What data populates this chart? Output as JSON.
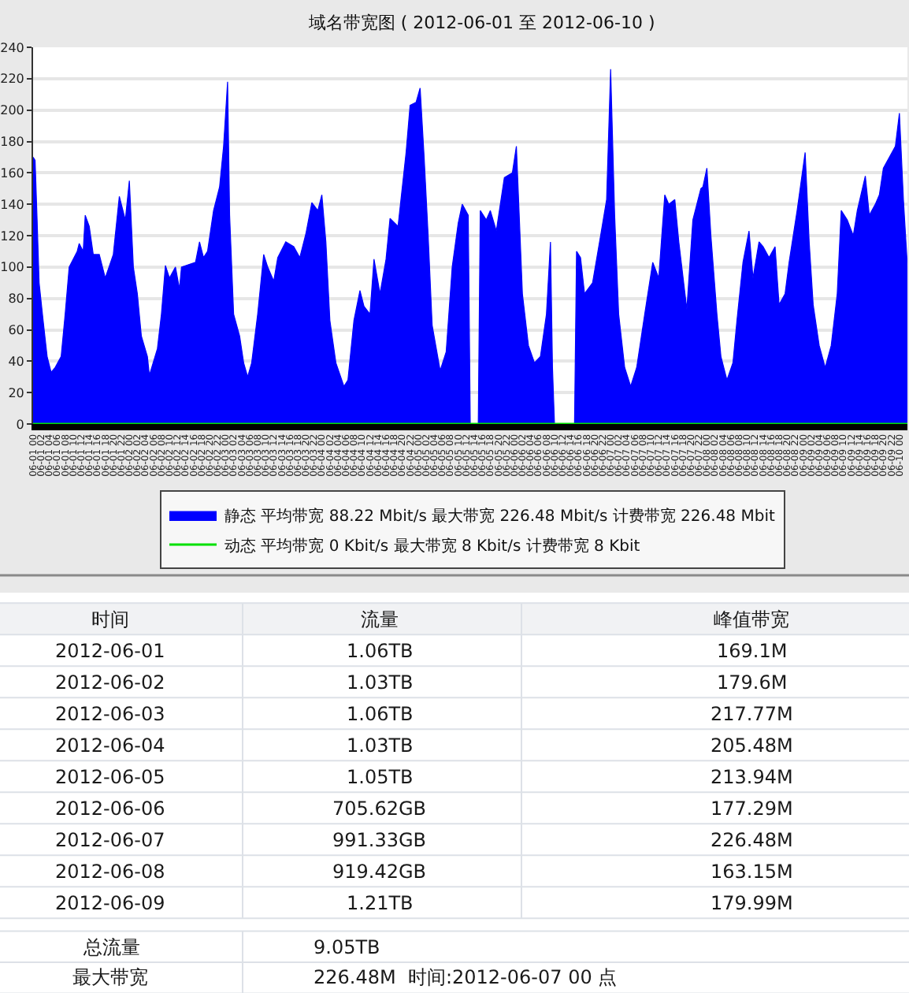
{
  "chart_data": {
    "type": "area",
    "title": "域名带宽图 ( 2012-06-01 至 2012-06-10 )",
    "x": [
      "2012-06-01T00:00",
      "2012-06-01T00:30",
      "2012-06-01T01:00",
      "2012-06-01T01:30",
      "2012-06-01T02:30",
      "2012-06-01T03:30",
      "2012-06-01T04:30",
      "2012-06-01T05:30",
      "2012-06-01T07:00",
      "2012-06-01T08:00",
      "2012-06-01T09:00",
      "2012-06-01T11:00",
      "2012-06-01T11:30",
      "2012-06-01T12:30",
      "2012-06-01T13:00",
      "2012-06-01T14:00",
      "2012-06-01T15:00",
      "2012-06-01T16:30",
      "2012-06-01T18:00",
      "2012-06-01T20:00",
      "2012-06-01T21:30",
      "2012-06-01T23:00",
      "2012-06-02T00:00",
      "2012-06-02T01:00",
      "2012-06-02T02:00",
      "2012-06-02T03:00",
      "2012-06-02T04:30",
      "2012-06-02T05:00",
      "2012-06-02T07:00",
      "2012-06-02T08:00",
      "2012-06-02T09:00",
      "2012-06-02T10:00",
      "2012-06-02T11:30",
      "2012-06-02T12:30",
      "2012-06-02T13:00",
      "2012-06-02T16:30",
      "2012-06-02T17:30",
      "2012-06-02T18:30",
      "2012-06-02T19:30",
      "2012-06-02T21:00",
      "2012-06-02T22:30",
      "2012-06-02T23:30",
      "2012-06-03T00:30",
      "2012-06-03T01:00",
      "2012-06-03T02:00",
      "2012-06-03T03:30",
      "2012-06-03T04:30",
      "2012-06-03T05:30",
      "2012-06-03T06:30",
      "2012-06-03T08:00",
      "2012-06-03T09:30",
      "2012-06-03T10:30",
      "2012-06-03T12:00",
      "2012-06-03T13:00",
      "2012-06-03T15:00",
      "2012-06-03T17:00",
      "2012-06-03T18:30",
      "2012-06-03T20:00",
      "2012-06-03T21:30",
      "2012-06-03T23:00",
      "2012-06-04T00:00",
      "2012-06-04T01:00",
      "2012-06-04T02:00",
      "2012-06-04T03:30",
      "2012-06-04T05:30",
      "2012-06-04T06:30",
      "2012-06-04T08:00",
      "2012-06-04T09:30",
      "2012-06-04T10:30",
      "2012-06-04T12:00",
      "2012-06-04T13:00",
      "2012-06-04T14:30",
      "2012-06-04T16:00",
      "2012-06-04T17:00",
      "2012-06-04T19:00",
      "2012-06-04T21:00",
      "2012-06-04T22:00",
      "2012-06-04T23:30",
      "2012-06-05T00:30",
      "2012-06-05T01:30",
      "2012-06-05T02:30",
      "2012-06-05T03:30",
      "2012-06-05T05:30",
      "2012-06-05T07:00",
      "2012-06-05T08:30",
      "2012-06-05T10:00",
      "2012-06-05T11:00",
      "2012-06-05T12:30",
      "2012-06-05T13:00",
      "2012-06-05T15:00",
      "2012-06-05T15:30",
      "2012-06-05T17:00",
      "2012-06-05T18:00",
      "2012-06-05T19:30",
      "2012-06-05T21:30",
      "2012-06-05T23:30",
      "2012-06-06T00:30",
      "2012-06-06T01:00",
      "2012-06-06T02:00",
      "2012-06-06T03:30",
      "2012-06-06T05:00",
      "2012-06-06T06:30",
      "2012-06-06T08:00",
      "2012-06-06T09:00",
      "2012-06-06T09:30",
      "2012-06-06T10:00",
      "2012-06-06T15:00",
      "2012-06-06T15:30",
      "2012-06-06T16:30",
      "2012-06-06T17:30",
      "2012-06-06T19:30",
      "2012-06-06T21:30",
      "2012-06-06T23:00",
      "2012-06-07T00:00",
      "2012-06-07T01:00",
      "2012-06-07T02:00",
      "2012-06-07T03:30",
      "2012-06-07T05:00",
      "2012-06-07T06:30",
      "2012-06-07T08:30",
      "2012-06-07T10:30",
      "2012-06-07T12:00",
      "2012-06-07T13:30",
      "2012-06-07T14:30",
      "2012-06-07T16:00",
      "2012-06-07T17:00",
      "2012-06-07T19:00",
      "2012-06-07T20:30",
      "2012-06-07T22:30",
      "2012-06-07T23:00",
      "2012-06-08T00:00",
      "2012-06-08T01:00",
      "2012-06-08T02:30",
      "2012-06-08T03:30",
      "2012-06-08T05:00",
      "2012-06-08T06:30",
      "2012-06-08T07:30",
      "2012-06-08T09:00",
      "2012-06-08T10:30",
      "2012-06-08T11:30",
      "2012-06-08T13:00",
      "2012-06-08T14:00",
      "2012-06-08T15:30",
      "2012-06-08T17:00",
      "2012-06-08T18:00",
      "2012-06-08T19:30",
      "2012-06-08T20:30",
      "2012-06-08T22:30",
      "2012-06-09T00:30",
      "2012-06-09T01:30",
      "2012-06-09T02:30",
      "2012-06-09T04:00",
      "2012-06-09T05:30",
      "2012-06-09T07:00",
      "2012-06-09T08:30",
      "2012-06-09T09:30",
      "2012-06-09T11:00",
      "2012-06-09T12:30",
      "2012-06-09T13:30",
      "2012-06-09T15:30",
      "2012-06-09T16:30",
      "2012-06-09T18:00",
      "2012-06-09T19:00",
      "2012-06-09T20:00",
      "2012-06-09T21:30",
      "2012-06-09T23:00",
      "2012-06-10T00:00",
      "2012-06-10T01:00",
      "2012-06-10T02:00"
    ],
    "series": [
      {
        "name": "静态 平均带宽 88.22 Mbit/s 最大带宽 226.48 Mbit/s 计费带宽 226.48 Mbit",
        "color": "#0000ff",
        "values": [
          170,
          168,
          130,
          90,
          66,
          43,
          33,
          36,
          43,
          70,
          100,
          110,
          115,
          110,
          133,
          126,
          108,
          108,
          93,
          108,
          145,
          130,
          155,
          100,
          83,
          56,
          43,
          31,
          48,
          70,
          101,
          93,
          100,
          86,
          100,
          103,
          116,
          106,
          110,
          136,
          151,
          177,
          218,
          133,
          70,
          56,
          39,
          30,
          39,
          70,
          108,
          100,
          91,
          106,
          116,
          113,
          106,
          121,
          141,
          136,
          146,
          116,
          66,
          39,
          24,
          28,
          66,
          85,
          75,
          70,
          105,
          83,
          105,
          131,
          126,
          173,
          203,
          205,
          214,
          170,
          120,
          63,
          34,
          46,
          100,
          128,
          140,
          133,
          0,
          0,
          136,
          130,
          136,
          123,
          157,
          160,
          177,
          146,
          83,
          50,
          39,
          43,
          70,
          116,
          36,
          0,
          0,
          110,
          106,
          83,
          90,
          120,
          143,
          226,
          133,
          70,
          36,
          24,
          36,
          70,
          103,
          93,
          146,
          140,
          143,
          116,
          73,
          130,
          150,
          151,
          163,
          120,
          70,
          43,
          28,
          39,
          66,
          103,
          123,
          93,
          116,
          113,
          106,
          113,
          76,
          83,
          103,
          136,
          173,
          116,
          76,
          50,
          36,
          50,
          83,
          136,
          130,
          120,
          136,
          158,
          133,
          140,
          146,
          163,
          170,
          177,
          198,
          143,
          100
        ]
      },
      {
        "name": "动态 平均带宽 0 Kbit/s 最大带宽 8 Kbit/s 计费带宽 8 Kbit",
        "type": "line",
        "color": "#00e000",
        "x": [
          "2012-06-01T00:00",
          "2012-06-10T02:00"
        ],
        "values": [
          0,
          0
        ]
      }
    ],
    "xlim": [
      "2012-06-01T00:00",
      "2012-06-10T02:00"
    ],
    "xticks": [
      {
        "value": "2012-06-01T00:00",
        "label": "06-01 00"
      },
      {
        "value": "2012-06-01T02:00",
        "label": "06-01 02"
      },
      {
        "value": "2012-06-01T04:00",
        "label": "06-01 04"
      },
      {
        "value": "2012-06-01T06:00",
        "label": "06-01 06"
      },
      {
        "value": "2012-06-01T08:00",
        "label": "06-01 08"
      },
      {
        "value": "2012-06-01T10:00",
        "label": "06-01 10"
      },
      {
        "value": "2012-06-01T12:00",
        "label": "06-01 12"
      },
      {
        "value": "2012-06-01T14:00",
        "label": "06-01 14"
      },
      {
        "value": "2012-06-01T16:00",
        "label": "06-01 16"
      },
      {
        "value": "2012-06-01T18:00",
        "label": "06-01 18"
      },
      {
        "value": "2012-06-01T20:00",
        "label": "06-01 20"
      },
      {
        "value": "2012-06-01T22:00",
        "label": "06-01 22"
      },
      {
        "value": "2012-06-02T00:00",
        "label": "06-02 00"
      },
      {
        "value": "2012-06-02T02:00",
        "label": "06-02 02"
      },
      {
        "value": "2012-06-02T04:00",
        "label": "06-02 04"
      },
      {
        "value": "2012-06-02T06:00",
        "label": "06-02 06"
      },
      {
        "value": "2012-06-02T08:00",
        "label": "06-02 08"
      },
      {
        "value": "2012-06-02T10:00",
        "label": "06-02 10"
      },
      {
        "value": "2012-06-02T12:00",
        "label": "06-02 12"
      },
      {
        "value": "2012-06-02T14:00",
        "label": "06-02 14"
      },
      {
        "value": "2012-06-02T16:00",
        "label": "06-02 16"
      },
      {
        "value": "2012-06-02T18:00",
        "label": "06-02 18"
      },
      {
        "value": "2012-06-02T20:00",
        "label": "06-02 20"
      },
      {
        "value": "2012-06-02T22:00",
        "label": "06-02 22"
      },
      {
        "value": "2012-06-03T00:00",
        "label": "06-03 00"
      },
      {
        "value": "2012-06-03T02:00",
        "label": "06-03 02"
      },
      {
        "value": "2012-06-03T04:00",
        "label": "06-03 04"
      },
      {
        "value": "2012-06-03T06:00",
        "label": "06-03 06"
      },
      {
        "value": "2012-06-03T08:00",
        "label": "06-03 08"
      },
      {
        "value": "2012-06-03T10:00",
        "label": "06-03 10"
      },
      {
        "value": "2012-06-03T12:00",
        "label": "06-03 12"
      },
      {
        "value": "2012-06-03T14:00",
        "label": "06-03 14"
      },
      {
        "value": "2012-06-03T16:00",
        "label": "06-03 16"
      },
      {
        "value": "2012-06-03T18:00",
        "label": "06-03 18"
      },
      {
        "value": "2012-06-03T20:00",
        "label": "06-03 20"
      },
      {
        "value": "2012-06-03T22:00",
        "label": "06-03 22"
      },
      {
        "value": "2012-06-04T00:00",
        "label": "06-04 00"
      },
      {
        "value": "2012-06-04T02:00",
        "label": "06-04 02"
      },
      {
        "value": "2012-06-04T04:00",
        "label": "06-04 04"
      },
      {
        "value": "2012-06-04T06:00",
        "label": "06-04 06"
      },
      {
        "value": "2012-06-04T08:00",
        "label": "06-04 08"
      },
      {
        "value": "2012-06-04T10:00",
        "label": "06-04 10"
      },
      {
        "value": "2012-06-04T12:00",
        "label": "06-04 12"
      },
      {
        "value": "2012-06-04T14:00",
        "label": "06-04 14"
      },
      {
        "value": "2012-06-04T16:00",
        "label": "06-04 16"
      },
      {
        "value": "2012-06-04T18:00",
        "label": "06-04 18"
      },
      {
        "value": "2012-06-04T20:00",
        "label": "06-04 20"
      },
      {
        "value": "2012-06-04T22:00",
        "label": "06-04 22"
      },
      {
        "value": "2012-06-05T00:00",
        "label": "06-05 00"
      },
      {
        "value": "2012-06-05T02:00",
        "label": "06-05 02"
      },
      {
        "value": "2012-06-05T04:00",
        "label": "06-05 04"
      },
      {
        "value": "2012-06-05T06:00",
        "label": "06-05 06"
      },
      {
        "value": "2012-06-05T08:00",
        "label": "06-05 08"
      },
      {
        "value": "2012-06-05T10:00",
        "label": "06-05 10"
      },
      {
        "value": "2012-06-05T12:00",
        "label": "06-05 12"
      },
      {
        "value": "2012-06-05T14:00",
        "label": "06-05 14"
      },
      {
        "value": "2012-06-05T16:00",
        "label": "06-05 16"
      },
      {
        "value": "2012-06-05T18:00",
        "label": "06-05 18"
      },
      {
        "value": "2012-06-05T20:00",
        "label": "06-05 20"
      },
      {
        "value": "2012-06-05T22:00",
        "label": "06-05 22"
      },
      {
        "value": "2012-06-06T00:00",
        "label": "06-06 00"
      },
      {
        "value": "2012-06-06T02:00",
        "label": "06-06 02"
      },
      {
        "value": "2012-06-06T04:00",
        "label": "06-06 04"
      },
      {
        "value": "2012-06-06T06:00",
        "label": "06-06 06"
      },
      {
        "value": "2012-06-06T08:00",
        "label": "06-06 08"
      },
      {
        "value": "2012-06-06T10:00",
        "label": "06-06 10"
      },
      {
        "value": "2012-06-06T12:00",
        "label": "06-06 12"
      },
      {
        "value": "2012-06-06T14:00",
        "label": "06-06 14"
      },
      {
        "value": "2012-06-06T16:00",
        "label": "06-06 16"
      },
      {
        "value": "2012-06-06T18:00",
        "label": "06-06 18"
      },
      {
        "value": "2012-06-06T20:00",
        "label": "06-06 20"
      },
      {
        "value": "2012-06-06T22:00",
        "label": "06-06 22"
      },
      {
        "value": "2012-06-07T00:00",
        "label": "06-07 00"
      },
      {
        "value": "2012-06-07T02:00",
        "label": "06-07 02"
      },
      {
        "value": "2012-06-07T04:00",
        "label": "06-07 04"
      },
      {
        "value": "2012-06-07T06:00",
        "label": "06-07 06"
      },
      {
        "value": "2012-06-07T08:00",
        "label": "06-07 08"
      },
      {
        "value": "2012-06-07T10:00",
        "label": "06-07 10"
      },
      {
        "value": "2012-06-07T12:00",
        "label": "06-07 12"
      },
      {
        "value": "2012-06-07T14:00",
        "label": "06-07 14"
      },
      {
        "value": "2012-06-07T16:00",
        "label": "06-07 16"
      },
      {
        "value": "2012-06-07T18:00",
        "label": "06-07 18"
      },
      {
        "value": "2012-06-07T20:00",
        "label": "06-07 20"
      },
      {
        "value": "2012-06-07T22:00",
        "label": "06-07 22"
      },
      {
        "value": "2012-06-08T00:00",
        "label": "06-08 00"
      },
      {
        "value": "2012-06-08T02:00",
        "label": "06-08 02"
      },
      {
        "value": "2012-06-08T04:00",
        "label": "06-08 04"
      },
      {
        "value": "2012-06-08T06:00",
        "label": "06-08 06"
      },
      {
        "value": "2012-06-08T08:00",
        "label": "06-08 08"
      },
      {
        "value": "2012-06-08T10:00",
        "label": "06-08 10"
      },
      {
        "value": "2012-06-08T12:00",
        "label": "06-08 12"
      },
      {
        "value": "2012-06-08T14:00",
        "label": "06-08 14"
      },
      {
        "value": "2012-06-08T16:00",
        "label": "06-08 16"
      },
      {
        "value": "2012-06-08T18:00",
        "label": "06-08 18"
      },
      {
        "value": "2012-06-08T20:00",
        "label": "06-08 20"
      },
      {
        "value": "2012-06-08T22:00",
        "label": "06-08 22"
      },
      {
        "value": "2012-06-09T00:00",
        "label": "06-09 00"
      },
      {
        "value": "2012-06-09T02:00",
        "label": "06-09 02"
      },
      {
        "value": "2012-06-09T04:00",
        "label": "06-09 04"
      },
      {
        "value": "2012-06-09T06:00",
        "label": "06-09 06"
      },
      {
        "value": "2012-06-09T08:00",
        "label": "06-09 08"
      },
      {
        "value": "2012-06-09T10:00",
        "label": "06-09 10"
      },
      {
        "value": "2012-06-09T12:00",
        "label": "06-09 12"
      },
      {
        "value": "2012-06-09T14:00",
        "label": "06-09 14"
      },
      {
        "value": "2012-06-09T16:00",
        "label": "06-09 16"
      },
      {
        "value": "2012-06-09T18:00",
        "label": "06-09 18"
      },
      {
        "value": "2012-06-09T20:00",
        "label": "06-09 20"
      },
      {
        "value": "2012-06-09T22:00",
        "label": "06-09 22"
      },
      {
        "value": "2012-06-10T00:00",
        "label": "06-10 00"
      }
    ],
    "ylim": [
      0,
      240
    ],
    "yticks": [
      0,
      20,
      40,
      60,
      80,
      100,
      120,
      140,
      160,
      180,
      200,
      220,
      240
    ],
    "grid": "y",
    "legend": "bottom",
    "annotations": [
      "时间",
      "流量",
      "峰值带宽",
      "2012-06-01",
      "1.06TB",
      "169.1M",
      "2012-06-02",
      "1.03TB",
      "179.6M",
      "2012-06-03",
      "1.06TB",
      "217.77M",
      "2012-06-04",
      "1.03TB",
      "205.48M",
      "2012-06-05",
      "1.05TB",
      "213.94M",
      "2012-06-06",
      "705.62GB",
      "177.29M",
      "2012-06-07",
      "991.33GB",
      "226.48M",
      "2012-06-08",
      "919.42GB",
      "163.15M",
      "2012-06-09",
      "1.21TB",
      "179.99M",
      "总流量",
      "9.05TB",
      "最大带宽",
      "226.48M  时间:2012-06-07 00 点"
    ]
  }
}
